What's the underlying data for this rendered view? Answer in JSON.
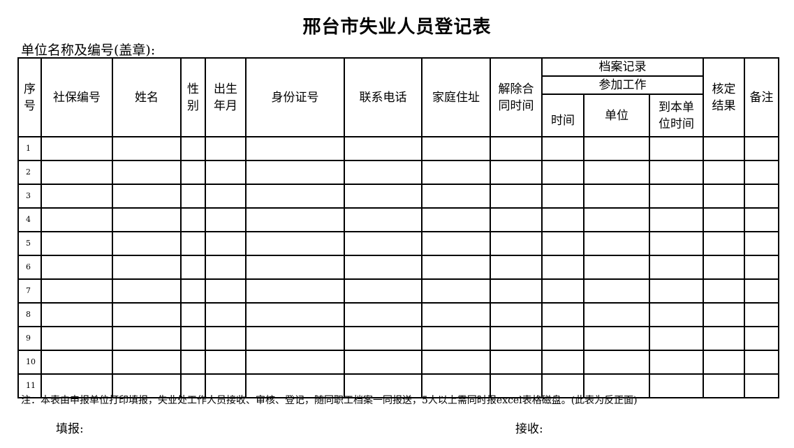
{
  "title": "邢台市失业人员登记表",
  "unit_label": "单位名称及编号(盖章):",
  "headers": {
    "seq": "序号",
    "social_security_no": "社保编号",
    "name": "姓名",
    "gender": "性别",
    "birth": "出生年月",
    "id_no": "身份证号",
    "phone": "联系电话",
    "address": "家庭住址",
    "contract_end": "解除合同时间",
    "archive": "档案记录",
    "work_start": "参加工作",
    "time": "时间",
    "employer": "单位",
    "join_date": "到本单位时间",
    "verify_result": "核定结果",
    "remarks": "备注"
  },
  "rows": [
    "1",
    "2",
    "3",
    "4",
    "5",
    "6",
    "7",
    "8",
    "9",
    "10",
    "11"
  ],
  "note": "注：本表由申报单位打印填报，失业处工作人员接收、审核、登记，随同职工档案一同报送，5人以上需同时报excel表格磁盘。(此表为反正面)",
  "filled_by_label": "填报:",
  "received_by_label": "接收:"
}
